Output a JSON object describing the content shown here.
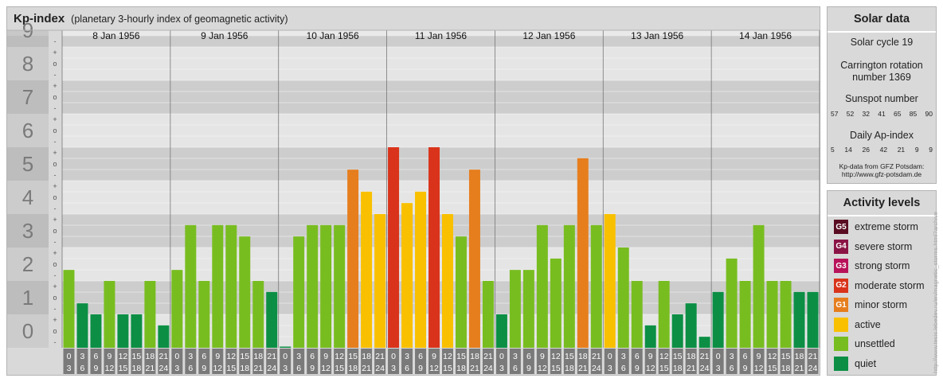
{
  "title": {
    "main": "Kp-index",
    "sub": "(planetary 3-hourly index of geomagnetic activity)"
  },
  "solar": {
    "header": "Solar data",
    "cycle": "Solar cycle 19",
    "carrington_line1": "Carrington rotation",
    "carrington_line2": "number 1369",
    "sunspot_label": "Sunspot number",
    "sunspot_values": [
      "57",
      "52",
      "32",
      "41",
      "65",
      "85",
      "90"
    ],
    "ap_label": "Daily Ap-index",
    "ap_values": [
      "5",
      "14",
      "26",
      "42",
      "21",
      "9",
      "9"
    ],
    "source_line1": "Kp-data from GFZ Potsdam:",
    "source_line2": "http://www.gfz-potsdam.de"
  },
  "levels": {
    "header": "Activity levels",
    "items": [
      {
        "badge": "G5",
        "label": "extreme storm",
        "color": "#5a0d22"
      },
      {
        "badge": "G4",
        "label": "severe storm",
        "color": "#8a1445"
      },
      {
        "badge": "G3",
        "label": "strong storm",
        "color": "#b8135a"
      },
      {
        "badge": "G2",
        "label": "moderate storm",
        "color": "#d9341b"
      },
      {
        "badge": "G1",
        "label": "minor storm",
        "color": "#e67e1e"
      },
      {
        "badge": "",
        "label": "active",
        "color": "#f9c000"
      },
      {
        "badge": "",
        "label": "unsettled",
        "color": "#78bd20"
      },
      {
        "badge": "",
        "label": "quiet",
        "color": "#0c8f45"
      }
    ]
  },
  "watermark": "http://www.tesis.lebedev.ru/en/magnetic_storms.html?archive",
  "chart_data": {
    "type": "bar",
    "y_ticks": [
      "0",
      "1",
      "2",
      "3",
      "4",
      "5",
      "6",
      "7",
      "8",
      "9"
    ],
    "sub_ticks": [
      "-",
      "o",
      "+"
    ],
    "ylim": [
      0,
      9.33
    ],
    "days": [
      "8 Jan 1956",
      "9 Jan 1956",
      "10 Jan 1956",
      "11 Jan 1956",
      "12 Jan 1956",
      "13 Jan 1956",
      "14 Jan 1956"
    ],
    "hour_start": [
      "0",
      "3",
      "6",
      "9",
      "12",
      "15",
      "18",
      "21"
    ],
    "hour_end": [
      "3",
      "6",
      "9",
      "12",
      "15",
      "18",
      "21",
      "24"
    ],
    "level_colors": {
      "quiet": "#0c8f45",
      "unsettled": "#78bd20",
      "active": "#f9c000",
      "G1": "#e67e1e",
      "G2": "#d9341b",
      "G3": "#b8135a",
      "G4": "#8a1445",
      "G5": "#5a0d22"
    },
    "kp_values": [
      2.33,
      1.33,
      1.0,
      2.0,
      1.0,
      1.0,
      2.0,
      0.67,
      2.33,
      3.67,
      2.0,
      3.67,
      3.67,
      3.33,
      2.0,
      1.67,
      0.0,
      3.33,
      3.67,
      3.67,
      3.67,
      5.33,
      4.67,
      4.0,
      6.0,
      4.33,
      4.67,
      6.0,
      4.0,
      3.33,
      5.33,
      2.0,
      1.0,
      2.33,
      2.33,
      3.67,
      2.67,
      3.67,
      5.67,
      3.67,
      4.0,
      3.0,
      2.0,
      0.67,
      2.0,
      1.0,
      1.33,
      0.33,
      1.67,
      2.67,
      2.0,
      3.67,
      2.0,
      2.0,
      1.67,
      1.67
    ]
  }
}
